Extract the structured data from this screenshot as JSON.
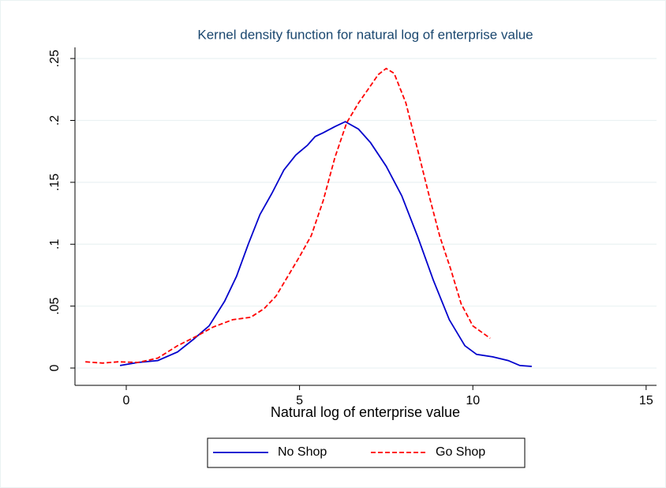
{
  "chart_data": {
    "type": "line",
    "title": "Kernel density function for natural log of enterprise value",
    "x_label": "Natural log of enterprise value",
    "xlim": [
      -1.48,
      15.3
    ],
    "xticks": [
      0,
      5,
      10,
      15
    ],
    "ylim": [
      -0.014,
      0.259
    ],
    "yticks": [
      0,
      {
        "value": 0.05,
        "label": ".05"
      },
      {
        "value": 0.1,
        "label": ".1"
      },
      {
        "value": 0.15,
        "label": ".15"
      },
      {
        "value": 0.2,
        "label": ".2"
      },
      {
        "value": 0.25,
        "label": ".25"
      }
    ],
    "grid": true,
    "legend": "bottom",
    "series": [
      {
        "name": "No Shop",
        "color": "#0000cc",
        "dash": "solid",
        "x": [
          -0.18,
          0.34,
          0.91,
          1.48,
          1.93,
          2.39,
          2.84,
          3.18,
          3.52,
          3.86,
          4.2,
          4.55,
          4.89,
          5.23,
          5.45,
          5.68,
          6.02,
          6.32,
          6.7,
          7.05,
          7.5,
          7.95,
          8.41,
          8.86,
          9.32,
          9.77,
          10.11,
          10.57,
          11.02,
          11.36,
          11.7
        ],
        "values": [
          0.002,
          0.0045,
          0.006,
          0.013,
          0.023,
          0.034,
          0.054,
          0.074,
          0.1,
          0.124,
          0.141,
          0.16,
          0.172,
          0.18,
          0.187,
          0.19,
          0.195,
          0.199,
          0.193,
          0.182,
          0.163,
          0.139,
          0.106,
          0.071,
          0.039,
          0.018,
          0.011,
          0.009,
          0.006,
          0.002,
          0.0013
        ]
      },
      {
        "name": "Go Shop",
        "color": "#ff0000",
        "dash": "dashed",
        "x": [
          -1.18,
          -0.68,
          -0.23,
          0.34,
          0.91,
          1.48,
          2.05,
          2.5,
          3.07,
          3.59,
          3.98,
          4.32,
          4.66,
          5.0,
          5.34,
          5.68,
          6.02,
          6.36,
          6.7,
          7.05,
          7.27,
          7.5,
          7.73,
          8.07,
          8.41,
          8.75,
          9.05,
          9.36,
          9.66,
          10.0,
          10.5
        ],
        "values": [
          0.005,
          0.004,
          0.005,
          0.0045,
          0.008,
          0.018,
          0.026,
          0.033,
          0.039,
          0.041,
          0.048,
          0.058,
          0.074,
          0.09,
          0.107,
          0.135,
          0.17,
          0.198,
          0.214,
          0.228,
          0.237,
          0.242,
          0.238,
          0.214,
          0.176,
          0.138,
          0.106,
          0.08,
          0.052,
          0.034,
          0.024
        ]
      }
    ]
  }
}
